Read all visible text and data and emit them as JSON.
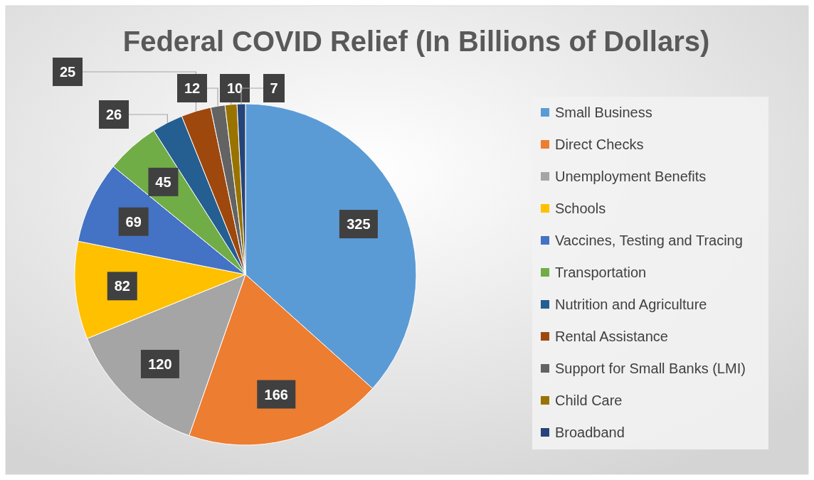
{
  "chart_data": {
    "type": "pie",
    "title": "Federal COVID Relief (In Billions of Dollars)",
    "categories": [
      "Small Business",
      "Direct Checks",
      "Unemployment Benefits",
      "Schools",
      "Vaccines, Testing and Tracing",
      "Transportation",
      "Nutrition and Agriculture",
      "Rental Assistance",
      "Support for Small Banks (LMI)",
      "Child Care",
      "Broadband"
    ],
    "values": [
      325,
      166,
      120,
      82,
      69,
      45,
      26,
      25,
      12,
      10,
      7
    ],
    "colors": [
      "#5b9bd5",
      "#ed7d31",
      "#a5a5a5",
      "#ffc000",
      "#4472c4",
      "#70ad47",
      "#255e91",
      "#9e480e",
      "#636363",
      "#997300",
      "#264478"
    ],
    "data_labels": true,
    "legend": "right"
  }
}
